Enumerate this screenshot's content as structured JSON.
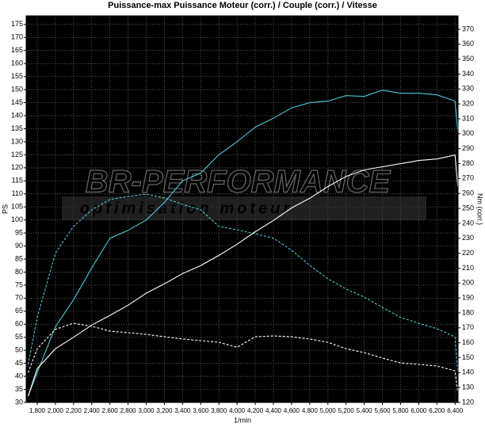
{
  "chart_data": {
    "type": "line",
    "title": "Puissance-max Puissance Moteur (corr.) / Couple (corr.) / Vitesse",
    "x_label": "1/min",
    "y_label": "PS",
    "y2_label": "Nm (corr.)",
    "watermark": {
      "brand": "BR-PERFORMANCE",
      "tagline": "optimisation moteur"
    },
    "grid": true,
    "xlim": [
      1678,
      6433
    ],
    "ylim": [
      30,
      178.3
    ],
    "y2lim": [
      120,
      379
    ],
    "xticks": [
      {
        "value": 1800,
        "label": "1,800"
      },
      {
        "value": 2000,
        "label": "2,000"
      },
      {
        "value": 2200,
        "label": "2,200"
      },
      {
        "value": 2400,
        "label": "2,400"
      },
      {
        "value": 2600,
        "label": "2,600"
      },
      {
        "value": 2800,
        "label": "2,800"
      },
      {
        "value": 3000,
        "label": "3,000"
      },
      {
        "value": 3200,
        "label": "3,200"
      },
      {
        "value": 3400,
        "label": "3,400"
      },
      {
        "value": 3600,
        "label": "3,600"
      },
      {
        "value": 3800,
        "label": "3,800"
      },
      {
        "value": 4000,
        "label": "4,000"
      },
      {
        "value": 4200,
        "label": "4,200"
      },
      {
        "value": 4400,
        "label": "4,400"
      },
      {
        "value": 4600,
        "label": "4,600"
      },
      {
        "value": 4800,
        "label": "4,800"
      },
      {
        "value": 5000,
        "label": "5,000"
      },
      {
        "value": 5200,
        "label": "5,200"
      },
      {
        "value": 5400,
        "label": "5,400"
      },
      {
        "value": 5600,
        "label": "5,600"
      },
      {
        "value": 5800,
        "label": "5,800"
      },
      {
        "value": 6000,
        "label": "6,000"
      },
      {
        "value": 6200,
        "label": "6,200"
      },
      {
        "value": 6400,
        "label": "6,400"
      }
    ],
    "yticks": [
      30,
      35,
      40,
      45,
      50,
      55,
      60,
      65,
      70,
      75,
      80,
      85,
      90,
      95,
      100,
      105,
      110,
      115,
      120,
      125,
      130,
      135,
      140,
      145,
      150,
      155,
      160,
      165,
      170,
      175
    ],
    "y2ticks": [
      120,
      130,
      140,
      150,
      160,
      170,
      180,
      190,
      200,
      210,
      220,
      230,
      240,
      250,
      260,
      270,
      280,
      290,
      300,
      310,
      320,
      330,
      340,
      350,
      360,
      370
    ],
    "x": [
      1700,
      1800,
      2000,
      2200,
      2400,
      2600,
      2800,
      3000,
      3200,
      3400,
      3600,
      3800,
      4000,
      4200,
      4400,
      4600,
      4800,
      5000,
      5200,
      5400,
      5600,
      5800,
      6000,
      6200,
      6400,
      6430
    ],
    "series": [
      {
        "color": "#4fc8d8",
        "dashed": false,
        "axis": "y",
        "values": [
          32.4,
          41.5,
          59,
          69.4,
          81.6,
          93,
          96,
          100,
          106.7,
          115,
          118,
          125,
          130,
          135.6,
          139,
          143,
          145,
          145.6,
          147.7,
          147.4,
          149.8,
          148.6,
          148.6,
          148,
          145.6,
          134
        ]
      },
      {
        "color": "#4fc8d8",
        "dashed": true,
        "axis": "y2",
        "values": [
          145.5,
          177,
          220,
          238,
          249,
          256,
          258,
          259.6,
          257,
          252.7,
          249,
          238,
          235.7,
          233,
          230,
          222,
          211.8,
          202.8,
          196,
          190.6,
          183.7,
          177,
          173,
          169.4,
          164,
          140
        ]
      },
      {
        "color": "#ffffff",
        "dashed": false,
        "axis": "y",
        "values": [
          32.4,
          43,
          50.6,
          55,
          59.7,
          63.4,
          67.3,
          71.9,
          75.5,
          79.4,
          82.5,
          86.4,
          90.7,
          95.5,
          99.8,
          104.6,
          108.3,
          112.8,
          116.7,
          119.2,
          120.4,
          121.6,
          122.8,
          123.4,
          124.9,
          112.8
        ]
      },
      {
        "color": "#ffffff",
        "dashed": true,
        "axis": "y2",
        "values": [
          140,
          156,
          169,
          173,
          171,
          167.8,
          166.7,
          165.6,
          164,
          162.5,
          161.4,
          160.3,
          157,
          164,
          164.6,
          164,
          162.5,
          160.3,
          156,
          153.4,
          149.7,
          146.5,
          145.5,
          144.4,
          141.2,
          127
        ]
      }
    ]
  }
}
